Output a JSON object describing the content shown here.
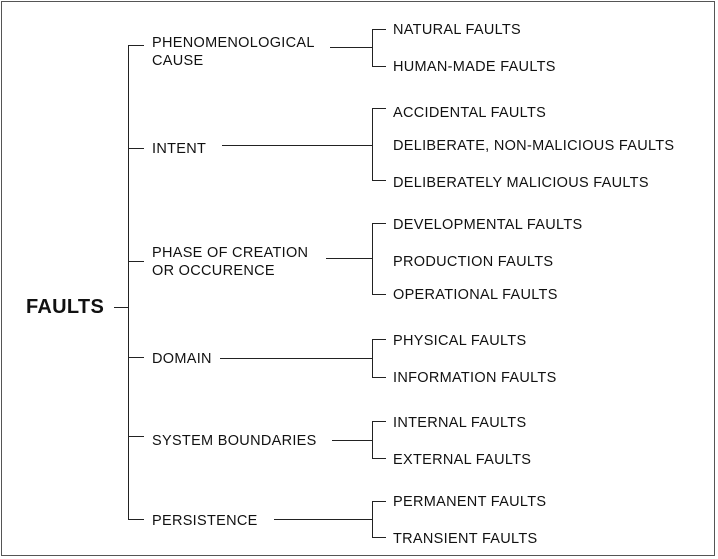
{
  "root": "FAULTS",
  "categories": [
    {
      "label_lines": [
        "PHENOMENOLOGICAL",
        "CAUSE"
      ],
      "items": [
        "NATURAL FAULTS",
        "HUMAN-MADE FAULTS"
      ]
    },
    {
      "label_lines": [
        "INTENT"
      ],
      "items": [
        "ACCIDENTAL FAULTS",
        "DELIBERATE, NON-MALICIOUS FAULTS",
        "DELIBERATELY MALICIOUS FAULTS"
      ]
    },
    {
      "label_lines": [
        "PHASE OF CREATION",
        "OR OCCURENCE"
      ],
      "items": [
        "DEVELOPMENTAL FAULTS",
        "PRODUCTION FAULTS",
        "OPERATIONAL FAULTS"
      ]
    },
    {
      "label_lines": [
        "DOMAIN"
      ],
      "items": [
        "PHYSICAL FAULTS",
        "INFORMATION FAULTS"
      ]
    },
    {
      "label_lines": [
        "SYSTEM BOUNDARIES"
      ],
      "items": [
        "INTERNAL FAULTS",
        "EXTERNAL FAULTS"
      ]
    },
    {
      "label_lines": [
        "PERSISTENCE"
      ],
      "items": [
        "PERMANENT FAULTS",
        "TRANSIENT FAULTS"
      ]
    }
  ]
}
